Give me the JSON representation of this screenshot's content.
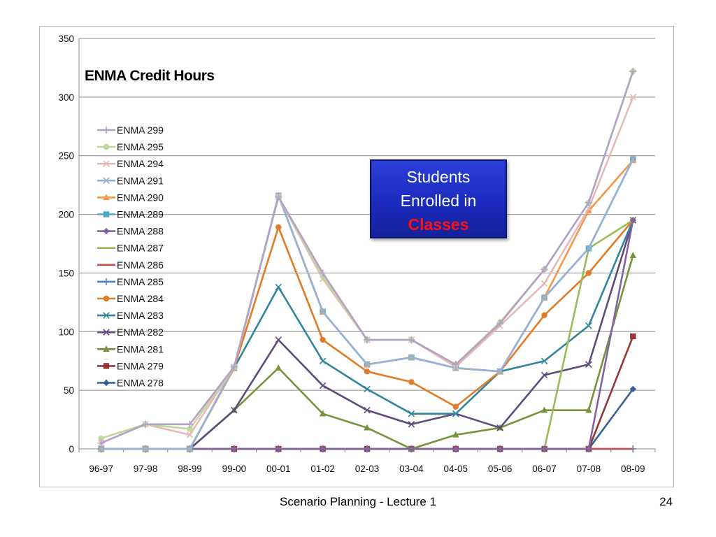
{
  "chart_data": {
    "type": "line",
    "title": "ENMA Credit Hours",
    "categories": [
      "96-97",
      "97-98",
      "98-99",
      "99-00",
      "00-01",
      "01-02",
      "02-03",
      "03-04",
      "04-05",
      "05-06",
      "06-07",
      "07-08",
      "08-09"
    ],
    "ylim": [
      0,
      350
    ],
    "yticks": [
      0,
      50,
      100,
      150,
      200,
      250,
      300,
      350
    ],
    "grid": true,
    "legend_position": "left",
    "series": [
      {
        "name": "ENMA 299",
        "color": "#b3a2c7",
        "marker": "plus",
        "values": [
          5,
          21,
          21,
          70,
          215,
          150,
          93,
          93,
          72,
          107,
          153,
          210,
          322
        ]
      },
      {
        "name": "ENMA 295",
        "color": "#c3d69b",
        "marker": "circle",
        "values": [
          9,
          21,
          17,
          70,
          215,
          147,
          93,
          93,
          72,
          108,
          153,
          210,
          322
        ]
      },
      {
        "name": "ENMA 294",
        "color": "#e6b9b8",
        "marker": "x",
        "values": [
          5,
          21,
          12,
          70,
          215,
          145,
          93,
          93,
          70,
          105,
          141,
          205,
          300
        ]
      },
      {
        "name": "ENMA 291",
        "color": "#95b3d7",
        "marker": "x",
        "values": [
          0,
          0,
          0,
          70,
          216,
          117,
          72,
          78,
          69,
          66,
          129,
          171,
          247
        ]
      },
      {
        "name": "ENMA 290",
        "color": "#f79646",
        "marker": "triangle",
        "values": [
          0,
          0,
          0,
          69,
          216,
          117,
          72,
          78,
          69,
          66,
          129,
          203,
          246
        ]
      },
      {
        "name": "ENMA 289",
        "color": "#4bacc6",
        "marker": "square",
        "values": [
          0,
          0,
          0,
          69,
          216,
          117,
          72,
          78,
          69,
          66,
          129,
          171,
          247
        ]
      },
      {
        "name": "ENMA 288",
        "color": "#8064a2",
        "marker": "diamond",
        "values": [
          0,
          0,
          0,
          0,
          0,
          0,
          0,
          0,
          0,
          0,
          0,
          0,
          195
        ]
      },
      {
        "name": "ENMA 287",
        "color": "#9bbb59",
        "marker": "none",
        "values": [
          0,
          0,
          0,
          0,
          0,
          0,
          0,
          0,
          0,
          0,
          0,
          171,
          195
        ]
      },
      {
        "name": "ENMA 286",
        "color": "#c0504d",
        "marker": "none",
        "values": [
          0,
          0,
          0,
          0,
          0,
          0,
          0,
          0,
          0,
          0,
          0,
          0,
          0
        ]
      },
      {
        "name": "ENMA 285",
        "color": "#4f81bd",
        "marker": "plus",
        "values": [
          0,
          0,
          0,
          0,
          0,
          0,
          0,
          0,
          0,
          0,
          0,
          0,
          0
        ]
      },
      {
        "name": "ENMA 284",
        "color": "#e07b28",
        "marker": "circle",
        "values": [
          0,
          0,
          0,
          69,
          189,
          93,
          66,
          57,
          36,
          66,
          114,
          150,
          195
        ]
      },
      {
        "name": "ENMA 283",
        "color": "#31859c",
        "marker": "x",
        "values": [
          0,
          0,
          0,
          69,
          138,
          75,
          51,
          30,
          30,
          66,
          75,
          105,
          195
        ]
      },
      {
        "name": "ENMA 282",
        "color": "#604a7b",
        "marker": "x",
        "values": [
          0,
          0,
          0,
          33,
          93,
          54,
          33,
          21,
          30,
          18,
          63,
          72,
          195
        ]
      },
      {
        "name": "ENMA 281",
        "color": "#77933c",
        "marker": "triangle",
        "values": [
          0,
          0,
          0,
          33,
          69,
          30,
          18,
          0,
          12,
          18,
          33,
          33,
          165
        ]
      },
      {
        "name": "ENMA 279",
        "color": "#953735",
        "marker": "square",
        "values": [
          0,
          0,
          0,
          0,
          0,
          0,
          0,
          0,
          0,
          0,
          0,
          0,
          96
        ]
      },
      {
        "name": "ENMA 278",
        "color": "#376092",
        "marker": "diamond",
        "values": [
          0,
          0,
          0,
          0,
          0,
          0,
          0,
          0,
          0,
          0,
          0,
          0,
          51
        ]
      }
    ]
  },
  "callout": {
    "line1": "Students",
    "line2": "Enrolled in",
    "line3": "Classes",
    "background": "#1f2fc8",
    "highlight_color": "#ff1010"
  },
  "footer": {
    "text": "Scenario Planning - Lecture 1",
    "page_number": "24"
  }
}
